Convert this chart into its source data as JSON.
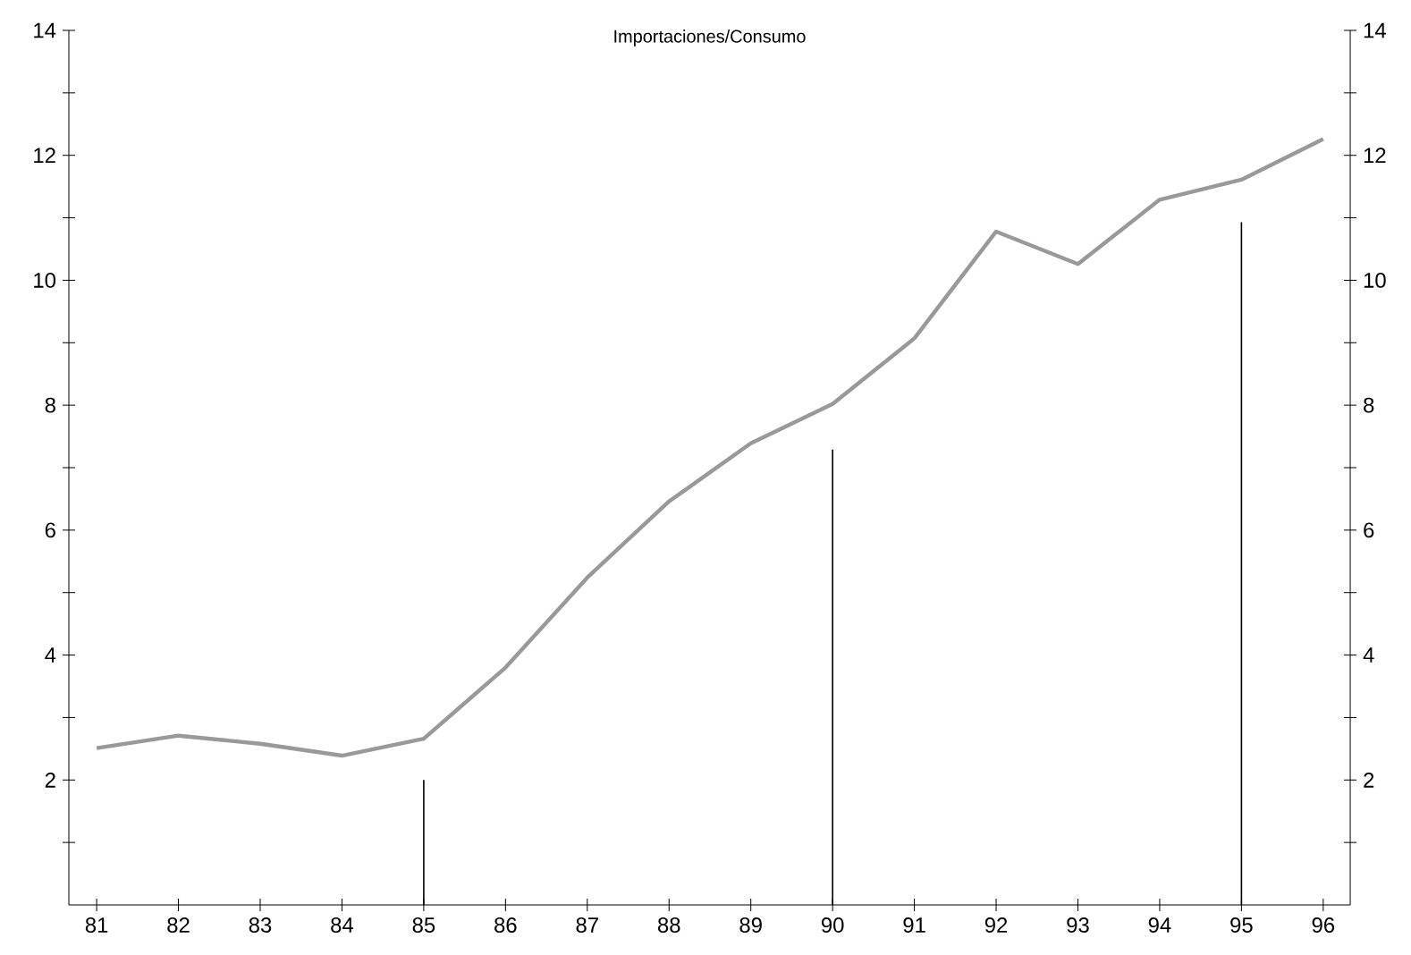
{
  "chart_data": {
    "type": "line",
    "title": "Importaciones/Consumo",
    "categories": [
      "81",
      "82",
      "83",
      "84",
      "85",
      "86",
      "87",
      "88",
      "89",
      "90",
      "91",
      "92",
      "93",
      "94",
      "95",
      "96"
    ],
    "series": [
      {
        "color": "#999999",
        "values": [
          2.51,
          2.71,
          2.58,
          2.39,
          2.66,
          3.8,
          5.24,
          6.46,
          7.39,
          8.02,
          9.07,
          10.78,
          10.26,
          11.29,
          11.61,
          12.26
        ]
      },
      {
        "type": "bar",
        "color": "#000000",
        "values": [
          null,
          null,
          null,
          null,
          2.0,
          null,
          null,
          null,
          null,
          7.29,
          null,
          null,
          null,
          null,
          10.93,
          null
        ]
      }
    ],
    "ylim": [
      0,
      14
    ],
    "yticks": [
      {
        "value": 1,
        "label": null
      },
      2,
      {
        "value": 3,
        "label": null
      },
      4,
      {
        "value": 5,
        "label": null
      },
      6,
      {
        "value": 7,
        "label": null
      },
      8,
      {
        "value": 9,
        "label": null
      },
      10,
      {
        "value": 11,
        "label": null
      },
      12,
      {
        "value": 13,
        "label": null
      },
      14
    ],
    "y2lim": [
      0,
      14
    ],
    "y2ticks": [
      {
        "value": 1,
        "label": null
      },
      2,
      {
        "value": 3,
        "label": null
      },
      4,
      {
        "value": 5,
        "label": null
      },
      6,
      {
        "value": 7,
        "label": null
      },
      8,
      {
        "value": 9,
        "label": null
      },
      10,
      {
        "value": 11,
        "label": null
      },
      12,
      {
        "value": 13,
        "label": null
      },
      14
    ],
    "grid": false,
    "legend": false,
    "marker": "none",
    "line_style": "solid"
  }
}
